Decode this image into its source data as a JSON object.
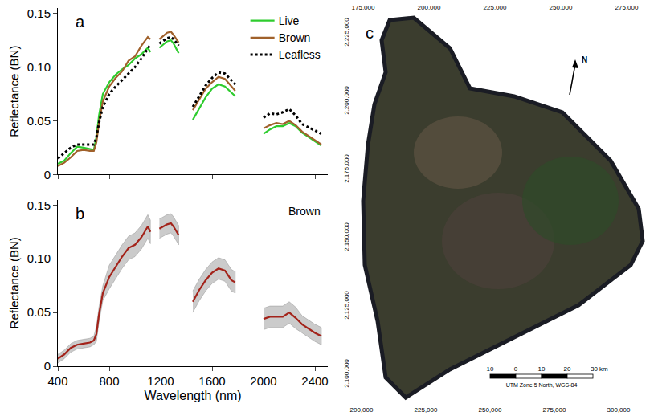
{
  "chart_data": [
    {
      "type": "line",
      "label": "a",
      "x": [
        400,
        450,
        500,
        550,
        600,
        650,
        680,
        700,
        720,
        750,
        800,
        850,
        900,
        950,
        1000,
        1050,
        1100,
        1120,
        1150,
        1190,
        1250,
        1280,
        1300,
        1340,
        1400,
        1450,
        1500,
        1550,
        1600,
        1650,
        1700,
        1750,
        1780,
        1900,
        2000,
        2050,
        2100,
        2150,
        2200,
        2250,
        2300,
        2350,
        2400,
        2450
      ],
      "series": [
        {
          "name": "Live",
          "color": "#2ecc2e",
          "line_style": "solid",
          "values": [
            0.01,
            0.013,
            0.02,
            0.026,
            0.025,
            0.024,
            0.023,
            0.035,
            0.055,
            0.075,
            0.086,
            0.093,
            0.098,
            0.102,
            0.108,
            0.112,
            0.118,
            0.114,
            null,
            0.118,
            0.124,
            0.125,
            0.122,
            0.113,
            null,
            0.051,
            0.062,
            0.072,
            0.08,
            0.084,
            0.082,
            0.076,
            0.073,
            null,
            0.038,
            0.042,
            0.045,
            0.045,
            0.048,
            0.045,
            0.039,
            0.035,
            0.031,
            0.027
          ]
        },
        {
          "name": "Brown",
          "color": "#a0612b",
          "line_style": "solid",
          "values": [
            0.008,
            0.011,
            0.016,
            0.022,
            0.023,
            0.022,
            0.022,
            0.03,
            0.048,
            0.068,
            0.082,
            0.09,
            0.096,
            0.106,
            0.11,
            0.12,
            0.128,
            0.126,
            null,
            0.126,
            0.132,
            0.133,
            0.13,
            0.123,
            null,
            0.06,
            0.07,
            0.08,
            0.086,
            0.091,
            0.089,
            0.082,
            0.078,
            null,
            0.043,
            0.046,
            0.048,
            0.047,
            0.05,
            0.046,
            0.04,
            0.036,
            0.032,
            0.028
          ]
        },
        {
          "name": "Leafless",
          "color": "#000000",
          "line_style": "dotted",
          "values": [
            0.015,
            0.02,
            0.025,
            0.028,
            0.028,
            0.028,
            0.028,
            0.035,
            0.048,
            0.063,
            0.075,
            0.082,
            0.088,
            0.094,
            0.1,
            0.108,
            0.117,
            0.121,
            null,
            0.122,
            0.127,
            0.128,
            0.126,
            0.12,
            null,
            0.063,
            0.073,
            0.083,
            0.09,
            0.095,
            0.094,
            0.088,
            0.084,
            null,
            0.053,
            0.057,
            0.056,
            0.058,
            0.061,
            0.055,
            0.047,
            0.044,
            0.041,
            0.038
          ]
        }
      ],
      "y_label": "Reflectance (BN)",
      "xlim": [
        400,
        2500
      ],
      "xticks": [
        400,
        800,
        1200,
        1600,
        2000,
        2400
      ],
      "ylim": [
        0,
        0.155
      ],
      "yticks": [
        0,
        0.05,
        {
          "value": 0.1,
          "label": "0.10"
        },
        0.15
      ],
      "tick_labels": "y",
      "legend": "upper right"
    },
    {
      "type": "line",
      "label": "b",
      "annotation": "Brown",
      "x": [
        400,
        450,
        500,
        550,
        600,
        650,
        680,
        700,
        720,
        750,
        800,
        850,
        900,
        950,
        1000,
        1050,
        1100,
        1120,
        1150,
        1190,
        1250,
        1280,
        1300,
        1340,
        1400,
        1450,
        1500,
        1550,
        1600,
        1650,
        1700,
        1750,
        1780,
        1900,
        2000,
        2050,
        2100,
        2150,
        2200,
        2250,
        2300,
        2350,
        2400,
        2450
      ],
      "series": [
        {
          "color": "#a3231a",
          "line_style": "solid",
          "values": [
            0.007,
            0.011,
            0.017,
            0.02,
            0.021,
            0.022,
            0.024,
            0.03,
            0.048,
            0.068,
            0.083,
            0.093,
            0.102,
            0.11,
            0.113,
            0.12,
            0.13,
            0.125,
            null,
            0.128,
            0.132,
            0.133,
            0.13,
            0.122,
            null,
            0.06,
            0.071,
            0.08,
            0.087,
            0.091,
            0.089,
            0.08,
            0.078,
            null,
            0.044,
            0.046,
            0.046,
            0.046,
            0.05,
            0.045,
            0.039,
            0.035,
            0.031,
            0.028
          ],
          "lower": [
            0.003,
            0.007,
            0.013,
            0.016,
            0.017,
            0.018,
            0.02,
            0.023,
            0.041,
            0.061,
            0.072,
            0.082,
            0.091,
            0.099,
            0.102,
            0.109,
            0.119,
            0.114,
            null,
            0.119,
            0.123,
            0.124,
            0.121,
            0.113,
            null,
            0.05,
            0.061,
            0.07,
            0.077,
            0.081,
            0.079,
            0.07,
            0.068,
            null,
            0.034,
            0.036,
            0.036,
            0.036,
            0.04,
            0.035,
            0.031,
            0.027,
            0.023,
            0.02
          ],
          "upper": [
            0.011,
            0.015,
            0.021,
            0.024,
            0.025,
            0.026,
            0.028,
            0.037,
            0.055,
            0.075,
            0.094,
            0.104,
            0.113,
            0.121,
            0.124,
            0.131,
            0.141,
            0.136,
            null,
            0.137,
            0.141,
            0.142,
            0.139,
            0.131,
            null,
            0.07,
            0.081,
            0.09,
            0.097,
            0.101,
            0.099,
            0.09,
            0.088,
            null,
            0.054,
            0.056,
            0.056,
            0.056,
            0.06,
            0.055,
            0.047,
            0.043,
            0.039,
            0.036
          ]
        }
      ],
      "x_label": "Wavelength (nm)",
      "y_label": "Reflectance (BN)",
      "xlim": [
        400,
        2500
      ],
      "xticks": [
        400,
        800,
        1200,
        1600,
        2000,
        2400
      ],
      "ylim": [
        0,
        0.155
      ],
      "yticks": [
        0,
        0.05,
        {
          "value": 0.1,
          "label": "0.10"
        },
        0.15
      ]
    }
  ],
  "map": {
    "label": "c",
    "top_ticks": [
      "175,000",
      "200,000",
      "225,000",
      "250,000",
      "275,000"
    ],
    "bottom_ticks": [
      "200,000",
      "225,000",
      "250,000",
      "275,000",
      "300,000"
    ],
    "left_ticks": [
      "2,100,000",
      "2,125,000",
      "2,150,000",
      "2,175,000",
      "2,200,000",
      "2,225,000"
    ],
    "north": "N",
    "scale_bar": [
      "10",
      "0",
      "10",
      "20",
      "30 km"
    ],
    "projection": "UTM Zone 5 North, WGS-84"
  }
}
